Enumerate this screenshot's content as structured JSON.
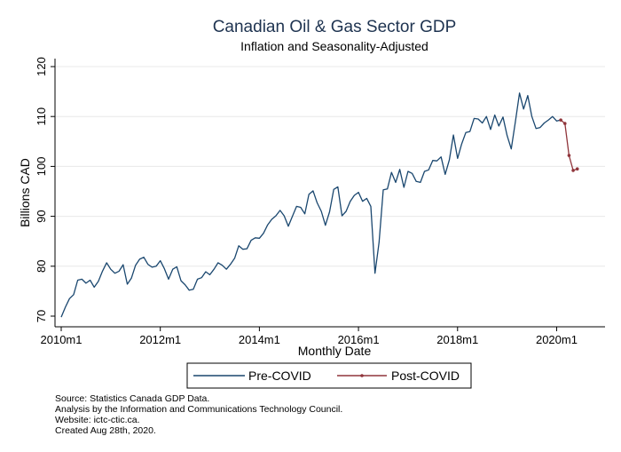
{
  "chart_data": {
    "type": "line",
    "title": "Canadian Oil & Gas Sector GDP",
    "subtitle": "Inflation and Seasonality-Adjusted",
    "xlabel": "Monthly Date",
    "ylabel": "Billions CAD",
    "xlim": [
      "2010m1",
      "2020m6"
    ],
    "ylim": [
      70,
      120
    ],
    "y_ticks": [
      70,
      80,
      90,
      100,
      110,
      120
    ],
    "x_ticks": [
      "2010m1",
      "2012m1",
      "2014m1",
      "2016m1",
      "2018m1",
      "2020m1"
    ],
    "grid": "horizontal",
    "legend": "bottom",
    "series": [
      {
        "name": "Pre-COVID",
        "color": "#1a476f",
        "x": [
          "2010m1",
          "2010m2",
          "2010m3",
          "2010m4",
          "2010m5",
          "2010m6",
          "2010m7",
          "2010m8",
          "2010m9",
          "2010m10",
          "2010m11",
          "2010m12",
          "2011m1",
          "2011m2",
          "2011m3",
          "2011m4",
          "2011m5",
          "2011m6",
          "2011m7",
          "2011m8",
          "2011m9",
          "2011m10",
          "2011m11",
          "2011m12",
          "2012m1",
          "2012m2",
          "2012m3",
          "2012m4",
          "2012m5",
          "2012m6",
          "2012m7",
          "2012m8",
          "2012m9",
          "2012m10",
          "2012m11",
          "2012m12",
          "2013m1",
          "2013m2",
          "2013m3",
          "2013m4",
          "2013m5",
          "2013m6",
          "2013m7",
          "2013m8",
          "2013m9",
          "2013m10",
          "2013m11",
          "2013m12",
          "2014m1",
          "2014m2",
          "2014m3",
          "2014m4",
          "2014m5",
          "2014m6",
          "2014m7",
          "2014m8",
          "2014m9",
          "2014m10",
          "2014m11",
          "2014m12",
          "2015m1",
          "2015m2",
          "2015m3",
          "2015m4",
          "2015m5",
          "2015m6",
          "2015m7",
          "2015m8",
          "2015m9",
          "2015m10",
          "2015m11",
          "2015m12",
          "2016m1",
          "2016m2",
          "2016m3",
          "2016m4",
          "2016m5",
          "2016m6",
          "2016m7",
          "2016m8",
          "2016m9",
          "2016m10",
          "2016m11",
          "2016m12",
          "2017m1",
          "2017m2",
          "2017m3",
          "2017m4",
          "2017m5",
          "2017m6",
          "2017m7",
          "2017m8",
          "2017m9",
          "2017m10",
          "2017m11",
          "2017m12",
          "2018m1",
          "2018m2",
          "2018m3",
          "2018m4",
          "2018m5",
          "2018m6",
          "2018m7",
          "2018m8",
          "2018m9",
          "2018m10",
          "2018m11",
          "2018m12",
          "2019m1",
          "2019m2",
          "2019m3",
          "2019m4",
          "2019m5",
          "2019m6",
          "2019m7",
          "2019m8",
          "2019m9",
          "2019m10",
          "2019m11",
          "2019m12",
          "2020m1",
          "2020m2"
        ],
        "y": [
          69.8,
          71.8,
          73.5,
          74.3,
          77.2,
          77.4,
          76.6,
          77.2,
          75.8,
          77.0,
          79.0,
          80.7,
          79.4,
          78.6,
          79.0,
          80.3,
          76.4,
          77.6,
          80.2,
          81.4,
          81.8,
          80.4,
          79.8,
          80.0,
          81.1,
          79.5,
          77.4,
          79.4,
          79.9,
          77.1,
          76.3,
          75.2,
          75.4,
          77.4,
          77.7,
          78.9,
          78.3,
          79.4,
          80.7,
          80.2,
          79.4,
          80.4,
          81.6,
          84.1,
          83.4,
          83.5,
          85.2,
          85.7,
          85.6,
          86.6,
          88.3,
          89.4,
          90.1,
          91.2,
          90.1,
          88.0,
          90.0,
          92.0,
          91.8,
          90.5,
          94.4,
          95.1,
          92.7,
          91.0,
          88.2,
          90.9,
          95.4,
          95.9,
          90.1,
          91.0,
          93.0,
          94.2,
          94.8,
          93.0,
          93.6,
          92.0,
          78.6,
          84.8,
          95.3,
          95.5,
          98.8,
          96.8,
          99.4,
          95.8,
          99.0,
          98.6,
          97.0,
          96.8,
          99.0,
          99.3,
          101.2,
          101.1,
          101.9,
          98.4,
          101.3,
          106.3,
          101.6,
          104.5,
          106.8,
          107.0,
          109.6,
          109.5,
          108.7,
          110.0,
          107.4,
          110.3,
          108.1,
          109.9,
          106.2,
          103.5,
          108.9,
          114.7,
          111.5,
          114.2,
          110.0,
          107.6,
          107.8,
          108.7,
          109.3,
          110.0,
          109.1,
          109.3
        ]
      },
      {
        "name": "Post-COVID",
        "color": "#90353b",
        "x": [
          "2020m2",
          "2020m3",
          "2020m4",
          "2020m5",
          "2020m6"
        ],
        "y": [
          109.3,
          108.6,
          102.2,
          99.2,
          99.5
        ]
      }
    ]
  },
  "source_notes": [
    "Source: Statistics Canada GDP Data.",
    "Analysis by the Information and Communications Technology Council.",
    "Website: ictc-ctic.ca.",
    "Created Aug 28th, 2020."
  ]
}
